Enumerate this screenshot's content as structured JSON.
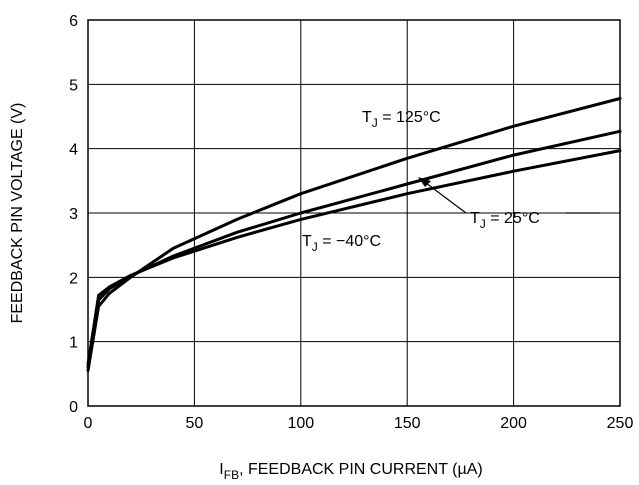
{
  "chart_data": {
    "type": "line",
    "title": "",
    "xlabel": "I_FB, FEEDBACK PIN CURRENT (µA)",
    "xlabel_main": "I",
    "xlabel_sub": "FB",
    "xlabel_rest": ", FEEDBACK PIN CURRENT (µA)",
    "ylabel": "FEEDBACK PIN VOLTAGE (V)",
    "xlim": [
      0,
      250
    ],
    "ylim": [
      0,
      6
    ],
    "xticks": [
      "0",
      "50",
      "100",
      "150",
      "200",
      "250"
    ],
    "yticks": [
      "0",
      "1",
      "2",
      "3",
      "4",
      "5",
      "6"
    ],
    "grid": true,
    "series": [
      {
        "name": "T_J = 125°C",
        "label_main": "T",
        "label_sub": "J",
        "label_rest": " = 125°C",
        "x": [
          0,
          5,
          10,
          20,
          40,
          70,
          100,
          150,
          200,
          250
        ],
        "y": [
          0.55,
          1.55,
          1.75,
          2.0,
          2.45,
          2.9,
          3.3,
          3.85,
          4.35,
          4.78
        ]
      },
      {
        "name": "T_J = 25°C",
        "label_main": "T",
        "label_sub": "J",
        "label_rest": " = 25°C",
        "x": [
          0,
          5,
          10,
          20,
          40,
          70,
          100,
          150,
          200,
          250
        ],
        "y": [
          0.6,
          1.65,
          1.82,
          2.02,
          2.33,
          2.7,
          3.0,
          3.45,
          3.9,
          4.27
        ]
      },
      {
        "name": "T_J = −40°C",
        "label_main": "T",
        "label_sub": "J",
        "label_rest": " = −40°C",
        "x": [
          0,
          5,
          10,
          20,
          40,
          70,
          100,
          150,
          200,
          250
        ],
        "y": [
          0.65,
          1.72,
          1.85,
          2.03,
          2.3,
          2.62,
          2.9,
          3.3,
          3.65,
          3.97
        ]
      }
    ]
  }
}
